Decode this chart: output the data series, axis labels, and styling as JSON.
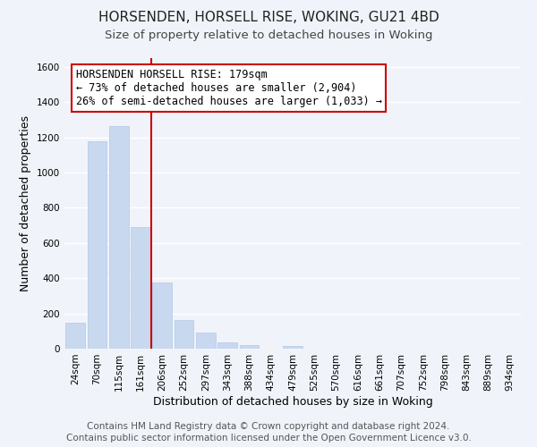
{
  "title": "HORSENDEN, HORSELL RISE, WOKING, GU21 4BD",
  "subtitle": "Size of property relative to detached houses in Woking",
  "xlabel": "Distribution of detached houses by size in Woking",
  "ylabel": "Number of detached properties",
  "bar_color": "#c8d8ee",
  "bar_edge_color": "#b0c8e8",
  "categories": [
    "24sqm",
    "70sqm",
    "115sqm",
    "161sqm",
    "206sqm",
    "252sqm",
    "297sqm",
    "343sqm",
    "388sqm",
    "434sqm",
    "479sqm",
    "525sqm",
    "570sqm",
    "616sqm",
    "661sqm",
    "707sqm",
    "752sqm",
    "798sqm",
    "843sqm",
    "889sqm",
    "934sqm"
  ],
  "values": [
    148,
    1180,
    1265,
    690,
    375,
    160,
    92,
    37,
    22,
    0,
    15,
    0,
    0,
    0,
    0,
    0,
    0,
    0,
    0,
    0,
    0
  ],
  "ylim": [
    0,
    1650
  ],
  "yticks": [
    0,
    200,
    400,
    600,
    800,
    1000,
    1200,
    1400,
    1600
  ],
  "property_line_x": 3.5,
  "property_line_color": "#cc0000",
  "annotation_line1": "HORSENDEN HORSELL RISE: 179sqm",
  "annotation_line2": "← 73% of detached houses are smaller (2,904)",
  "annotation_line3": "26% of semi-detached houses are larger (1,033) →",
  "footer1": "Contains HM Land Registry data © Crown copyright and database right 2024.",
  "footer2": "Contains public sector information licensed under the Open Government Licence v3.0.",
  "background_color": "#f0f4fa",
  "grid_color": "#ffffff",
  "title_fontsize": 11,
  "subtitle_fontsize": 9.5,
  "axis_label_fontsize": 9,
  "tick_fontsize": 7.5,
  "annotation_fontsize": 8.5,
  "footer_fontsize": 7.5
}
